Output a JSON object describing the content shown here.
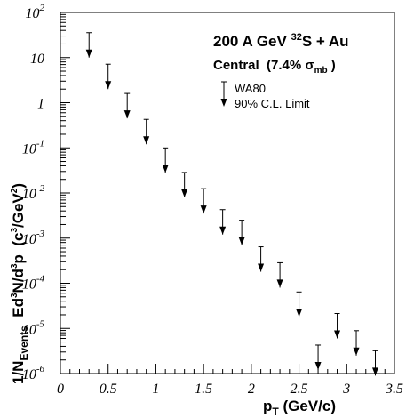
{
  "chart_data": {
    "type": "scatter",
    "marker": "upper-limit-arrow",
    "x": [
      0.3,
      0.5,
      0.7,
      0.9,
      1.1,
      1.3,
      1.5,
      1.7,
      1.9,
      2.1,
      2.3,
      2.5,
      2.7,
      2.9,
      3.1,
      3.3
    ],
    "values": [
      10,
      2,
      0.45,
      0.12,
      0.028,
      0.008,
      0.0035,
      0.0012,
      0.0007,
      0.00018,
      8e-05,
      1.8e-05,
      1.2e-06,
      6e-06,
      2.5e-06,
      9e-07
    ],
    "xlim": [
      0,
      3.5
    ],
    "ylim": [
      1e-06,
      100
    ],
    "yscale": "log",
    "xticks": [
      "0",
      "0.5",
      "1",
      "1.5",
      "2",
      "2.5",
      "3",
      "3.5"
    ],
    "yticks": [
      {
        "base": "10",
        "exp": "-6"
      },
      {
        "base": "10",
        "exp": "-5"
      },
      {
        "base": "10",
        "exp": "-4"
      },
      {
        "base": "10",
        "exp": "-3"
      },
      {
        "base": "10",
        "exp": "-2"
      },
      {
        "base": "10",
        "exp": "-1"
      },
      {
        "base": "1",
        "exp": ""
      },
      {
        "base": "10",
        "exp": ""
      },
      {
        "base": "10",
        "exp": "2"
      }
    ],
    "xlabel": {
      "main": "p",
      "sub": "T",
      "rest": " (GeV/c)"
    },
    "ylabel": {
      "p1": "1/N",
      "p1sub": "Events",
      "p2": "  Ed",
      "p2sup": "3",
      "p3": "N/d",
      "p3sup": "3",
      "p4": "p  (c",
      "p4sup": "3",
      "p5": "/GeV",
      "p5sup": "2",
      "p6": ")"
    },
    "annotation": {
      "line1_pre": "200 A GeV ",
      "line1_sup": "32",
      "line1_post": "S + Au",
      "line2_pre": "Central  (7.4% σ",
      "line2_sub": "mb",
      "line2_post": " )"
    },
    "legend": {
      "line1": "WA80",
      "line2": "90% C.L. Limit",
      "position": "upper-right"
    }
  }
}
